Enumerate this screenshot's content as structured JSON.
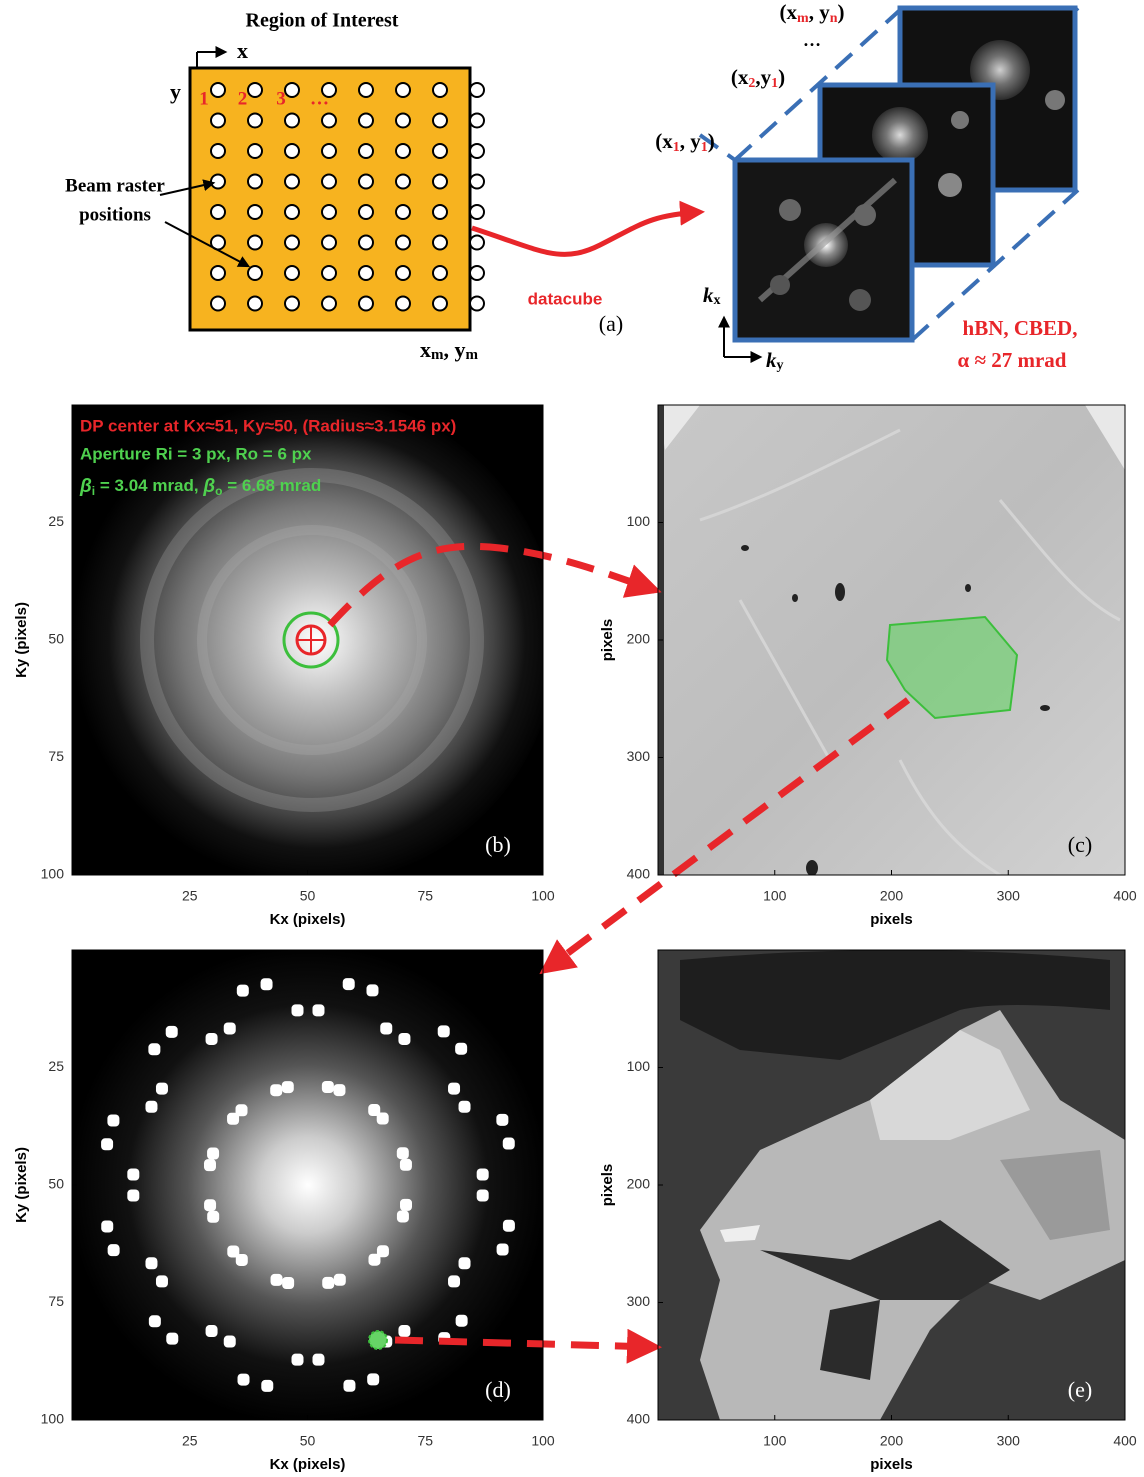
{
  "panel_a": {
    "title": "Region of Interest",
    "x_axis": "x",
    "y_axis": "y",
    "indices": [
      "1",
      "2",
      "3",
      "…"
    ],
    "raster_label": [
      "Beam raster",
      "positions"
    ],
    "corner": {
      "a": "x",
      "as": "m",
      "b": ", y",
      "bs": "m"
    },
    "arrow_label": "datacube",
    "letter": "(a)",
    "coords": [
      {
        "open": "(x",
        "xs": "1",
        "mid": ", y",
        "ys": "1",
        "close": ")"
      },
      {
        "open": "(x",
        "xs": "2",
        "mid": ",y",
        "ys": "1",
        "close": ")"
      },
      {
        "open": "(x",
        "xs": "m",
        "mid": ", y",
        "ys": "n",
        "close": ")"
      }
    ],
    "ellipsis": "…",
    "kx": {
      "k": "k",
      "s": "x"
    },
    "ky": {
      "k": "k",
      "s": "y"
    },
    "sample": "hBN, CBED,",
    "alpha": "α ≈ 27 mrad"
  },
  "panels": [
    {
      "letter": "(b)",
      "xlabel": "Kx (pixels)",
      "ylabel": "Ky (pixels)",
      "xlim": [
        0,
        100
      ],
      "ylim": [
        0,
        100
      ],
      "xticks": [
        25,
        50,
        75,
        100
      ],
      "yticks": [
        25,
        50,
        75,
        100
      ],
      "annotations": [
        "DP center at Kx≈51, Ky≈50, (Radius≈3.1546 px)",
        "Aperture Ri = 3 px, Ro = 6 px"
      ],
      "beta": {
        "b1": "β",
        "s1": "i",
        "t1": " = 3.04 mrad,  ",
        "b2": "β",
        "s2": "o",
        "t2": " = 6.68 mrad"
      }
    },
    {
      "letter": "(c)",
      "xlabel": "pixels",
      "ylabel": "pixels",
      "xlim": [
        0,
        400
      ],
      "ylim": [
        0,
        400
      ],
      "xticks": [
        100,
        200,
        300,
        400
      ],
      "yticks": [
        100,
        200,
        300,
        400
      ]
    },
    {
      "letter": "(d)",
      "xlabel": "Kx (pixels)",
      "ylabel": "Ky (pixels)",
      "xlim": [
        0,
        100
      ],
      "ylim": [
        0,
        100
      ],
      "xticks": [
        25,
        50,
        75,
        100
      ],
      "yticks": [
        25,
        50,
        75,
        100
      ]
    },
    {
      "letter": "(e)",
      "xlabel": "pixels",
      "ylabel": "pixels",
      "xlim": [
        0,
        400
      ],
      "ylim": [
        0,
        400
      ],
      "xticks": [
        100,
        200,
        300,
        400
      ],
      "yticks": [
        100,
        200,
        300,
        400
      ]
    }
  ]
}
